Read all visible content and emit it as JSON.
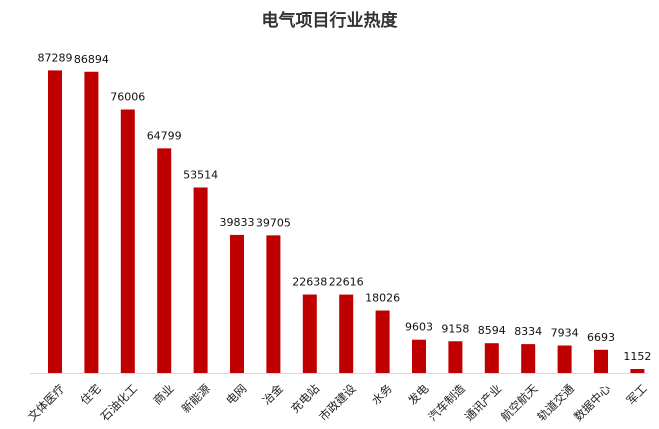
{
  "chart_data": {
    "type": "bar",
    "title": "电气项目行业热度",
    "xlabel": "",
    "ylabel": "",
    "ylim": [
      0,
      90000
    ],
    "grid": false,
    "legend": "none",
    "bar_color": "#c00000",
    "axis_color": "#d9d9d9",
    "categories": [
      "文体医疗",
      "住宅",
      "石油化工",
      "商业",
      "新能源",
      "电网",
      "冶金",
      "充电站",
      "市政建设",
      "水务",
      "发电",
      "汽车制造",
      "通讯产业",
      "航空航天",
      "轨道交通",
      "数据中心",
      "军工"
    ],
    "values": [
      87289,
      86894,
      76006,
      64799,
      53514,
      39833,
      39705,
      22638,
      22616,
      18026,
      9603,
      9158,
      8594,
      8334,
      7934,
      6693,
      1152
    ]
  }
}
